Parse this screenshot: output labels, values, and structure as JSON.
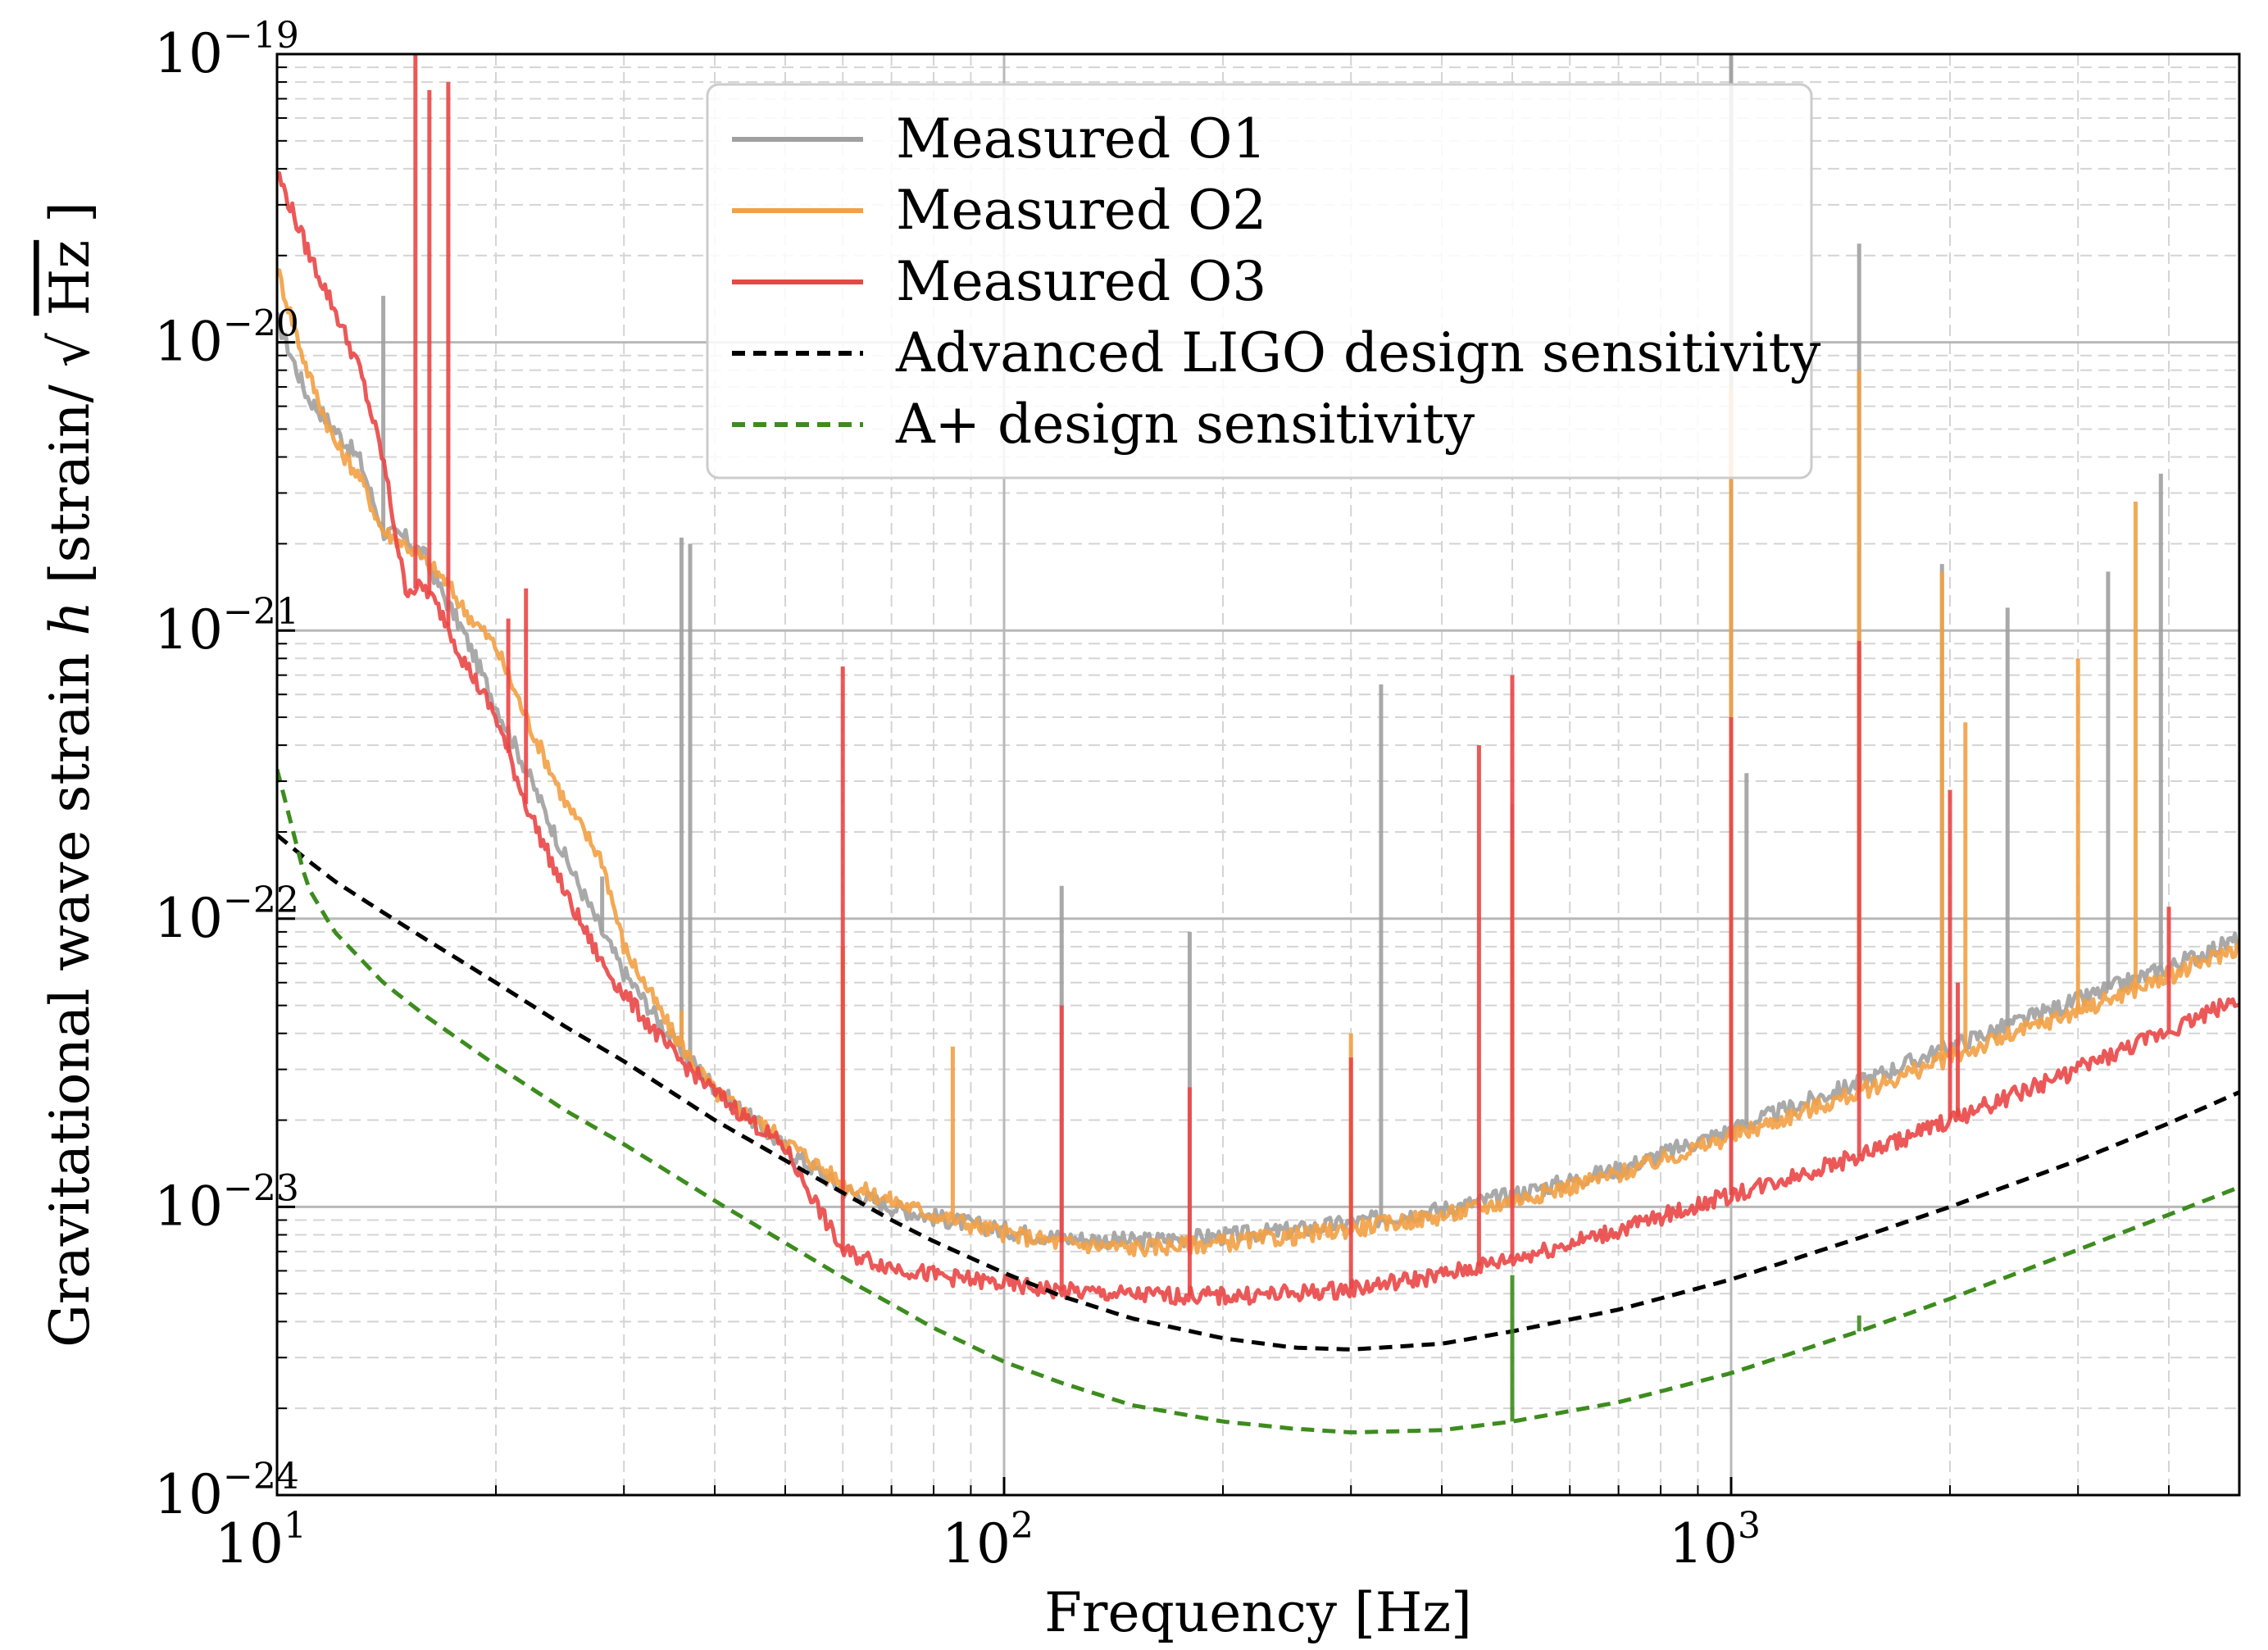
{
  "chart_data": {
    "type": "line",
    "title": "",
    "xlabel": "Frequency [Hz]",
    "ylabel_text": "Gravitational wave strain",
    "ylabel_var": "h",
    "ylabel_units_prefix": "[strain/",
    "ylabel_units_radicand": "Hz",
    "ylabel_units_suffix": "]",
    "xscale": "log",
    "yscale": "log",
    "xlim": [
      10,
      5000
    ],
    "ylim": [
      1e-24,
      1e-19
    ],
    "grid": true,
    "legend_position": "top-center",
    "x_ticks": [
      {
        "value": 10,
        "base": "10",
        "exp": "1"
      },
      {
        "value": 100,
        "base": "10",
        "exp": "2"
      },
      {
        "value": 1000,
        "base": "10",
        "exp": "3"
      }
    ],
    "y_ticks": [
      {
        "value": 1e-24,
        "base": "10",
        "exp": "−24"
      },
      {
        "value": 1e-23,
        "base": "10",
        "exp": "−23"
      },
      {
        "value": 1e-22,
        "base": "10",
        "exp": "−22"
      },
      {
        "value": 1e-21,
        "base": "10",
        "exp": "−21"
      },
      {
        "value": 1e-20,
        "base": "10",
        "exp": "−20"
      },
      {
        "value": 1e-19,
        "base": "10",
        "exp": "−19"
      }
    ],
    "series": [
      {
        "name": "Measured O1",
        "color": "#a0a0a0",
        "style": "solid",
        "points": [
          [
            10,
            1.2e-20
          ],
          [
            11,
            6.5e-21
          ],
          [
            12,
            5e-21
          ],
          [
            13,
            3.9e-21
          ],
          [
            14,
            2.2e-21
          ],
          [
            15,
            2.1e-21
          ],
          [
            16,
            1.8e-21
          ],
          [
            17,
            1.3e-21
          ],
          [
            18,
            1e-21
          ],
          [
            20,
            5.5e-22
          ],
          [
            22,
            3.3e-22
          ],
          [
            25,
            1.6e-22
          ],
          [
            28,
            9e-23
          ],
          [
            30,
            6.5e-23
          ],
          [
            35,
            3.8e-23
          ],
          [
            40,
            2.6e-23
          ],
          [
            50,
            1.6e-23
          ],
          [
            60,
            1.15e-23
          ],
          [
            70,
            1e-23
          ],
          [
            80,
            9.2e-24
          ],
          [
            100,
            8.3e-24
          ],
          [
            120,
            7.8e-24
          ],
          [
            150,
            7.6e-24
          ],
          [
            200,
            7.9e-24
          ],
          [
            250,
            8.3e-24
          ],
          [
            300,
            8.8e-24
          ],
          [
            400,
            9.8e-24
          ],
          [
            500,
            1.1e-23
          ],
          [
            700,
            1.35e-23
          ],
          [
            1000,
            1.85e-23
          ],
          [
            1500,
            2.7e-23
          ],
          [
            2000,
            3.6e-23
          ],
          [
            3000,
            5.2e-23
          ],
          [
            4000,
            6.8e-23
          ],
          [
            5000,
            8.5e-23
          ]
        ],
        "spikes": [
          [
            14,
            1.45e-20
          ],
          [
            28,
            1.4e-22
          ],
          [
            36,
            2.1e-21
          ],
          [
            37,
            2e-21
          ],
          [
            60,
            8e-23
          ],
          [
            120,
            1.3e-22
          ],
          [
            180,
            9e-23
          ],
          [
            330,
            6.5e-22
          ],
          [
            500,
            2.5e-22
          ],
          [
            1000,
            1e-19
          ],
          [
            1050,
            3.2e-22
          ],
          [
            1500,
            2.2e-20
          ],
          [
            1950,
            1.7e-21
          ],
          [
            2400,
            1.2e-21
          ],
          [
            3300,
            1.6e-21
          ],
          [
            3900,
            3.5e-21
          ]
        ]
      },
      {
        "name": "Measured O2",
        "color": "#f2a044",
        "style": "solid",
        "points": [
          [
            10,
            1.8e-20
          ],
          [
            11,
            8e-21
          ],
          [
            12,
            4.5e-21
          ],
          [
            13,
            3.4e-21
          ],
          [
            14,
            2.2e-21
          ],
          [
            15,
            2e-21
          ],
          [
            17,
            1.5e-21
          ],
          [
            18,
            1.2e-21
          ],
          [
            20,
            8.8e-22
          ],
          [
            22,
            5e-22
          ],
          [
            25,
            2.5e-22
          ],
          [
            28,
            1.6e-22
          ],
          [
            30,
            8e-23
          ],
          [
            35,
            4e-23
          ],
          [
            40,
            2.5e-23
          ],
          [
            50,
            1.7e-23
          ],
          [
            60,
            1.2e-23
          ],
          [
            70,
            1.05e-23
          ],
          [
            80,
            9.4e-24
          ],
          [
            100,
            8.1e-24
          ],
          [
            120,
            7.5e-24
          ],
          [
            150,
            7.2e-24
          ],
          [
            200,
            7.5e-24
          ],
          [
            250,
            7.9e-24
          ],
          [
            300,
            8.4e-24
          ],
          [
            400,
            9.3e-24
          ],
          [
            500,
            1.05e-23
          ],
          [
            700,
            1.3e-23
          ],
          [
            1000,
            1.75e-23
          ],
          [
            1500,
            2.5e-23
          ],
          [
            2000,
            3.3e-23
          ],
          [
            3000,
            4.8e-23
          ],
          [
            4000,
            6.3e-23
          ],
          [
            5000,
            8e-23
          ]
        ],
        "spikes": [
          [
            36,
            4.8e-23
          ],
          [
            60,
            8e-23
          ],
          [
            85,
            3.6e-23
          ],
          [
            300,
            4e-23
          ],
          [
            500,
            1.9e-22
          ],
          [
            1000,
            7e-21
          ],
          [
            1500,
            8e-21
          ],
          [
            1950,
            1.6e-21
          ],
          [
            2100,
            4.8e-22
          ],
          [
            3000,
            8e-22
          ],
          [
            3600,
            2.8e-21
          ]
        ]
      },
      {
        "name": "Measured O3",
        "color": "#ea4646",
        "style": "solid",
        "points": [
          [
            10,
            3.9e-20
          ],
          [
            11,
            2.1e-20
          ],
          [
            12,
            1.3e-20
          ],
          [
            13,
            8e-21
          ],
          [
            14,
            3.9e-21
          ],
          [
            15,
            1.4e-21
          ],
          [
            16,
            1.4e-21
          ],
          [
            17,
            1.1e-21
          ],
          [
            18,
            8e-22
          ],
          [
            20,
            5e-22
          ],
          [
            22,
            2.5e-22
          ],
          [
            25,
            1.2e-22
          ],
          [
            28,
            7e-23
          ],
          [
            30,
            5.5e-23
          ],
          [
            35,
            3.4e-23
          ],
          [
            40,
            2.5e-23
          ],
          [
            50,
            1.6e-23
          ],
          [
            60,
            7e-24
          ],
          [
            70,
            6.2e-24
          ],
          [
            80,
            5.8e-24
          ],
          [
            100,
            5.4e-24
          ],
          [
            120,
            5.1e-24
          ],
          [
            150,
            4.95e-24
          ],
          [
            200,
            4.9e-24
          ],
          [
            250,
            5e-24
          ],
          [
            300,
            5.2e-24
          ],
          [
            400,
            5.8e-24
          ],
          [
            500,
            6.6e-24
          ],
          [
            700,
            8.3e-24
          ],
          [
            1000,
            1.1e-23
          ],
          [
            1500,
            1.5e-23
          ],
          [
            2000,
            2e-23
          ],
          [
            3000,
            3e-23
          ],
          [
            4000,
            4.1e-23
          ],
          [
            5000,
            5.3e-23
          ]
        ],
        "spikes": [
          [
            15.5,
            1e-19
          ],
          [
            16.2,
            7.5e-20
          ],
          [
            17.2,
            8e-20
          ],
          [
            20.8,
            1.1e-21
          ],
          [
            22,
            1.4e-21
          ],
          [
            60,
            7.5e-22
          ],
          [
            120,
            5e-23
          ],
          [
            180,
            2.6e-23
          ],
          [
            300,
            3.3e-23
          ],
          [
            450,
            4e-22
          ],
          [
            500,
            7e-22
          ],
          [
            1000,
            5e-22
          ],
          [
            1500,
            9.2e-22
          ],
          [
            2000,
            2.8e-22
          ],
          [
            2050,
            6e-23
          ],
          [
            4000,
            1.1e-22
          ]
        ]
      },
      {
        "name": "Advanced LIGO design sensitivity",
        "color": "#000000",
        "style": "dashed",
        "points": [
          [
            10,
            1.95e-22
          ],
          [
            11,
            1.6e-22
          ],
          [
            12,
            1.35e-22
          ],
          [
            14,
            1.05e-22
          ],
          [
            16,
            8.5e-23
          ],
          [
            20,
            6e-23
          ],
          [
            25,
            4.2e-23
          ],
          [
            30,
            3.2e-23
          ],
          [
            40,
            2e-23
          ],
          [
            50,
            1.45e-23
          ],
          [
            60,
            1.12e-23
          ],
          [
            70,
            9e-24
          ],
          [
            80,
            7.6e-24
          ],
          [
            100,
            5.9e-24
          ],
          [
            120,
            4.9e-24
          ],
          [
            150,
            4.1e-24
          ],
          [
            200,
            3.5e-24
          ],
          [
            250,
            3.25e-24
          ],
          [
            300,
            3.2e-24
          ],
          [
            400,
            3.35e-24
          ],
          [
            500,
            3.7e-24
          ],
          [
            700,
            4.4e-24
          ],
          [
            1000,
            5.6e-24
          ],
          [
            1500,
            7.8e-24
          ],
          [
            2000,
            1e-23
          ],
          [
            3000,
            1.45e-23
          ],
          [
            4000,
            1.95e-23
          ],
          [
            5000,
            2.5e-23
          ]
        ]
      },
      {
        "name": "A+ design sensitivity",
        "color": "#3d8c1e",
        "style": "dashed",
        "points": [
          [
            10,
            3.3e-22
          ],
          [
            11,
            1.3e-22
          ],
          [
            12,
            9e-23
          ],
          [
            14,
            6e-23
          ],
          [
            16,
            4.6e-23
          ],
          [
            20,
            3.1e-23
          ],
          [
            25,
            2.15e-23
          ],
          [
            30,
            1.65e-23
          ],
          [
            40,
            1.05e-23
          ],
          [
            50,
            7.5e-24
          ],
          [
            60,
            5.7e-24
          ],
          [
            70,
            4.6e-24
          ],
          [
            80,
            3.8e-24
          ],
          [
            100,
            2.9e-24
          ],
          [
            120,
            2.45e-24
          ],
          [
            150,
            2.05e-24
          ],
          [
            200,
            1.8e-24
          ],
          [
            250,
            1.7e-24
          ],
          [
            300,
            1.65e-24
          ],
          [
            400,
            1.68e-24
          ],
          [
            500,
            1.8e-24
          ],
          [
            700,
            2.1e-24
          ],
          [
            1000,
            2.65e-24
          ],
          [
            1500,
            3.7e-24
          ],
          [
            2000,
            4.8e-24
          ],
          [
            3000,
            7.1e-24
          ],
          [
            4000,
            9.4e-24
          ],
          [
            5000,
            1.17e-23
          ]
        ],
        "spikes": [
          [
            500,
            5.8e-24
          ],
          [
            1500,
            4.2e-24
          ]
        ]
      }
    ]
  }
}
